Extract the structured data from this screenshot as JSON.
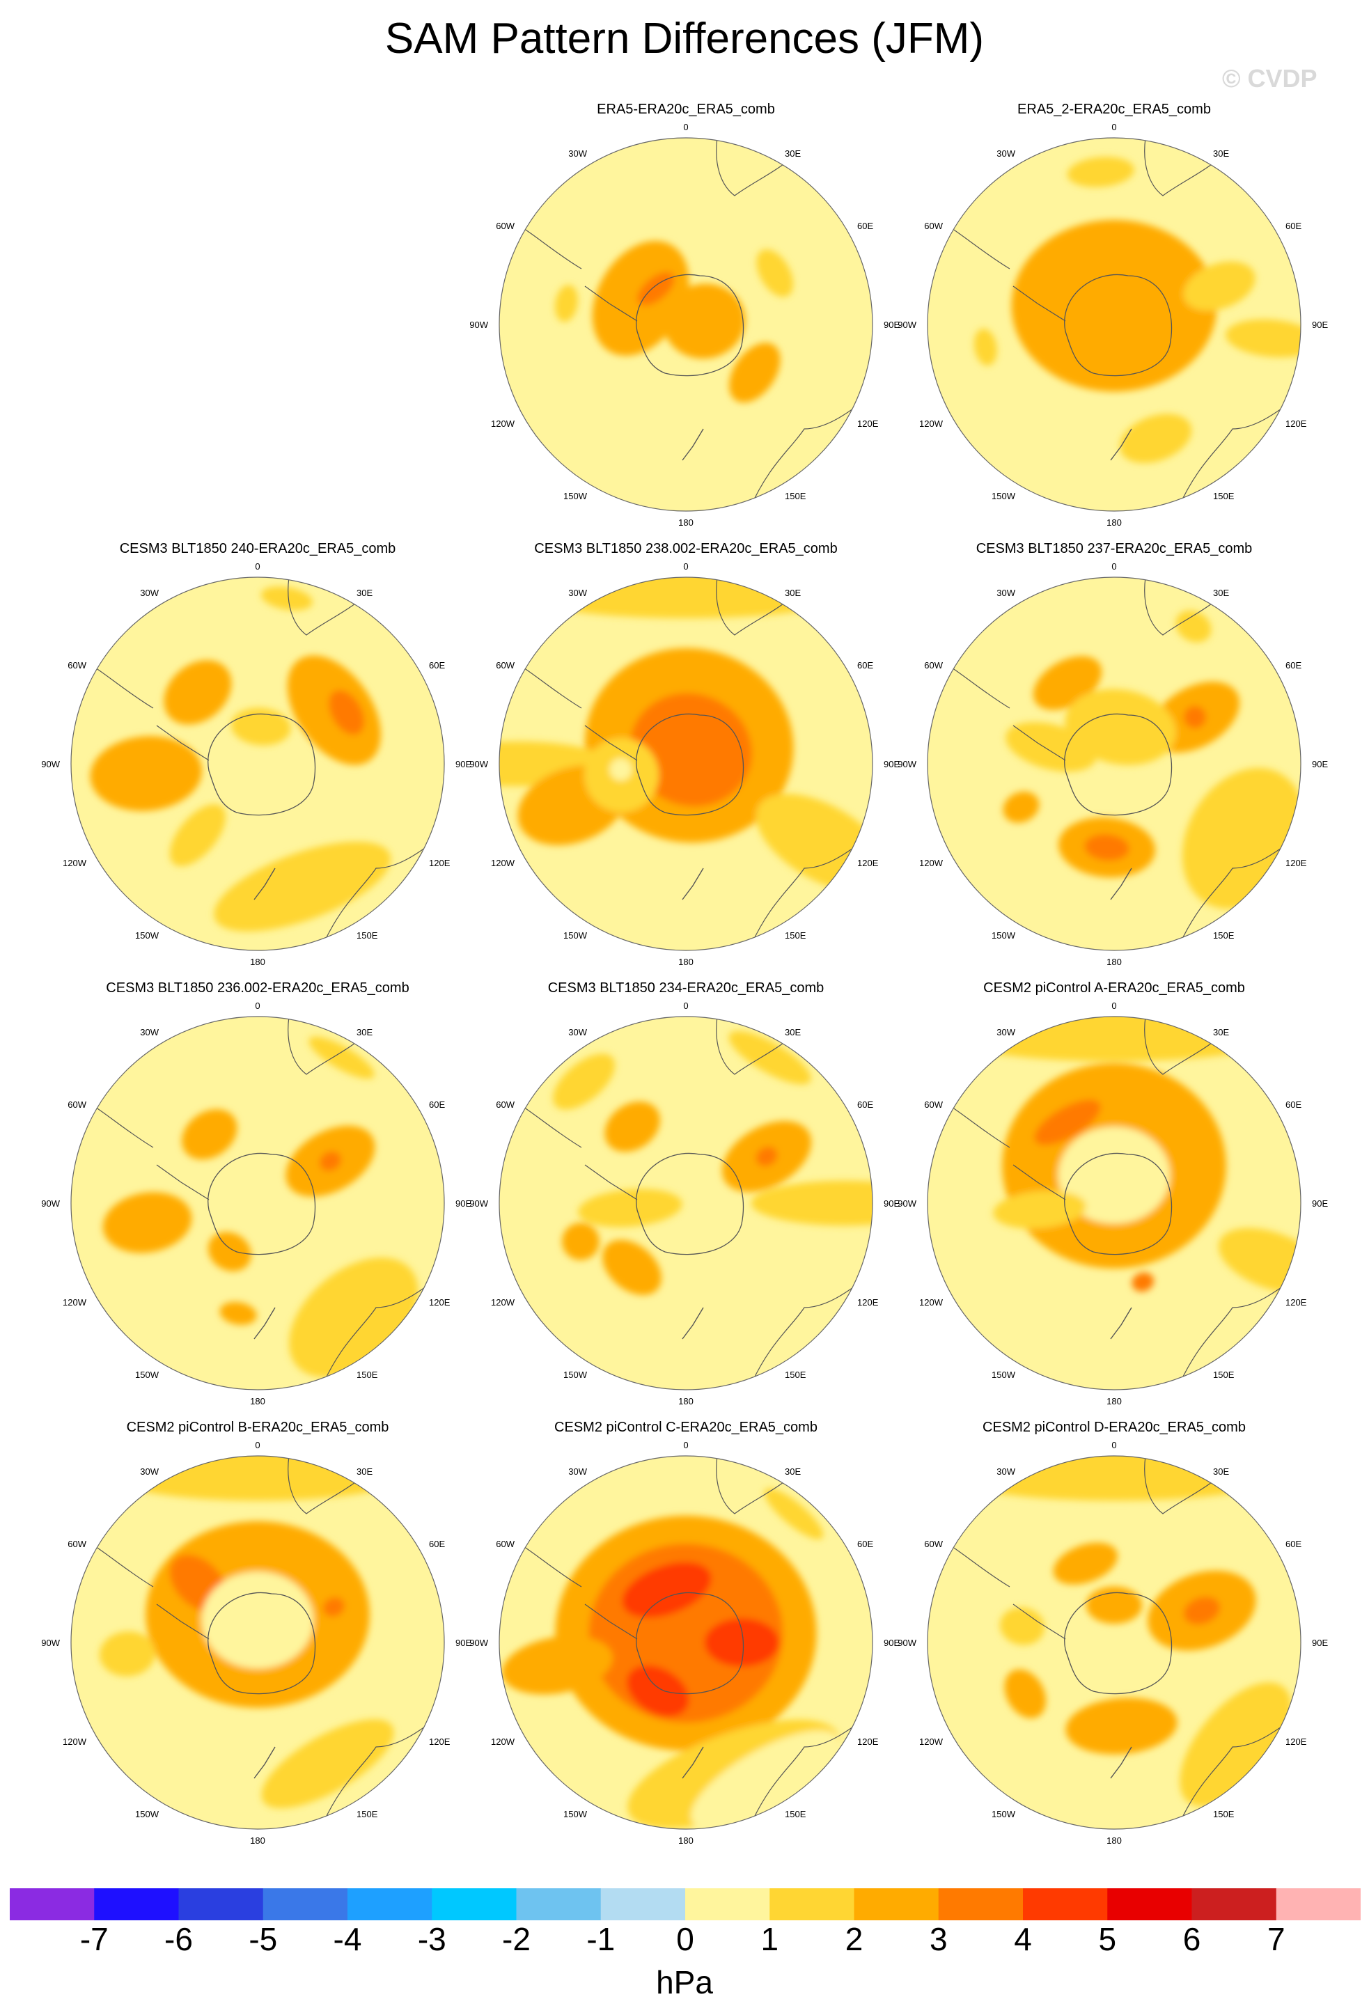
{
  "title": "SAM Pattern Differences (JFM)",
  "watermark": "© CVDP",
  "colorbar": {
    "unit": "hPa",
    "ticks": [
      "-7",
      "-6",
      "-5",
      "-4",
      "-3",
      "-2",
      "-1",
      "0",
      "1",
      "2",
      "3",
      "4",
      "5",
      "6",
      "7"
    ],
    "colors": [
      "#8b2be2",
      "#1e10ff",
      "#2a3fe0",
      "#3a78e8",
      "#1ea0ff",
      "#00c8ff",
      "#6ec3f0",
      "#b3dcf2",
      "#fff59d",
      "#ffd633",
      "#ffab00",
      "#ff7a00",
      "#ff3a00",
      "#e80000",
      "#cc1f1f",
      "#ffb3b3"
    ]
  },
  "lon_labels": {
    "deg0": "0",
    "deg30e": "30E",
    "deg60e": "60E",
    "deg90e": "90E",
    "deg120e": "120E",
    "deg150e": "150E",
    "deg180": "180",
    "deg150w": "150W",
    "deg120w": "120W",
    "deg90w": "90W",
    "deg60w": "60W",
    "deg30w": "30W"
  },
  "panels": [
    {
      "title": "ERA5-ERA20c_ERA5_comb",
      "blobs": [
        {
          "c": 3,
          "a": -60,
          "r": 0.28,
          "w": 0.33,
          "h": 0.23
        },
        {
          "c": 3,
          "a": 125,
          "r": 0.45,
          "w": 0.18,
          "h": 0.11
        },
        {
          "c": 3,
          "a": 80,
          "r": 0.1,
          "w": 0.2,
          "h": 0.22
        },
        {
          "c": 2,
          "a": 60,
          "r": 0.55,
          "w": 0.14,
          "h": 0.08
        },
        {
          "c": 2,
          "a": -80,
          "r": 0.65,
          "w": 0.1,
          "h": 0.06
        },
        {
          "c": 4,
          "a": -40,
          "r": 0.25,
          "w": 0.12,
          "h": 0.06
        }
      ]
    },
    {
      "title": "ERA5_2-ERA20c_ERA5_comb",
      "blobs": [
        {
          "c": 3,
          "a": 0,
          "r": 0.1,
          "w": 0.55,
          "h": 0.46
        },
        {
          "c": 2,
          "a": -5,
          "r": 0.82,
          "w": 0.18,
          "h": 0.08
        },
        {
          "c": 2,
          "a": 160,
          "r": 0.65,
          "w": 0.2,
          "h": 0.12
        },
        {
          "c": 2,
          "a": 70,
          "r": 0.6,
          "w": 0.12,
          "h": 0.2
        },
        {
          "c": 2,
          "a": -100,
          "r": 0.7,
          "w": 0.1,
          "h": 0.06
        },
        {
          "c": 2,
          "a": 95,
          "r": 0.85,
          "w": 0.1,
          "h": 0.25
        }
      ]
    },
    {
      "title": "CESM3 BLT1850 240-ERA20c_ERA5_comb",
      "blobs": [
        {
          "c": 3,
          "a": 55,
          "r": 0.5,
          "w": 0.33,
          "h": 0.2
        },
        {
          "c": 4,
          "a": 60,
          "r": 0.55,
          "w": 0.13,
          "h": 0.08
        },
        {
          "c": 3,
          "a": -40,
          "r": 0.5,
          "w": 0.2,
          "h": 0.15
        },
        {
          "c": 3,
          "a": -95,
          "r": 0.6,
          "w": 0.2,
          "h": 0.3
        },
        {
          "c": 2,
          "a": 160,
          "r": 0.7,
          "w": 0.5,
          "h": 0.18
        },
        {
          "c": 2,
          "a": 5,
          "r": 0.2,
          "w": 0.16,
          "h": 0.1
        },
        {
          "c": 2,
          "a": -140,
          "r": 0.5,
          "w": 0.1,
          "h": 0.2
        },
        {
          "c": 2,
          "a": 10,
          "r": 0.9,
          "w": 0.14,
          "h": 0.06
        }
      ]
    },
    {
      "title": "CESM3 BLT1850 238.002-ERA20c_ERA5_comb",
      "blobs": [
        {
          "c": 3,
          "a": 10,
          "r": 0.1,
          "w": 0.56,
          "h": 0.52
        },
        {
          "c": 4,
          "a": 20,
          "r": 0.08,
          "w": 0.33,
          "h": 0.3
        },
        {
          "c": 2,
          "a": 0,
          "r": 0.92,
          "w": 0.9,
          "h": 0.14
        },
        {
          "c": 2,
          "a": 120,
          "r": 0.85,
          "w": 0.2,
          "h": 0.4
        },
        {
          "c": 2,
          "a": -90,
          "r": 0.9,
          "w": 0.12,
          "h": 0.5
        },
        {
          "c": 3,
          "a": -110,
          "r": 0.65,
          "w": 0.2,
          "h": 0.3
        },
        {
          "c": 2,
          "a": -100,
          "r": 0.35,
          "w": 0.2,
          "h": 0.2
        },
        {
          "c": 1,
          "a": -95,
          "r": 0.35,
          "w": 0.06,
          "h": 0.06
        }
      ]
    },
    {
      "title": "CESM3 BLT1850 237-ERA20c_ERA5_comb",
      "blobs": [
        {
          "c": 3,
          "a": 60,
          "r": 0.5,
          "w": 0.16,
          "h": 0.26
        },
        {
          "c": 4,
          "a": 60,
          "r": 0.5,
          "w": 0.06,
          "h": 0.06
        },
        {
          "c": 3,
          "a": -175,
          "r": 0.45,
          "w": 0.26,
          "h": 0.16
        },
        {
          "c": 4,
          "a": -175,
          "r": 0.45,
          "w": 0.12,
          "h": 0.07
        },
        {
          "c": 3,
          "a": -30,
          "r": 0.5,
          "w": 0.2,
          "h": 0.12
        },
        {
          "c": 3,
          "a": -115,
          "r": 0.55,
          "w": 0.08,
          "h": 0.1
        },
        {
          "c": 2,
          "a": 10,
          "r": 0.2,
          "w": 0.3,
          "h": 0.2
        },
        {
          "c": 2,
          "a": -75,
          "r": 0.35,
          "w": 0.12,
          "h": 0.25
        },
        {
          "c": 2,
          "a": 120,
          "r": 0.8,
          "w": 0.4,
          "h": 0.3
        },
        {
          "c": 2,
          "a": 30,
          "r": 0.85,
          "w": 0.1,
          "h": 0.08
        }
      ]
    },
    {
      "title": "CESM3 BLT1850 236.002-ERA20c_ERA5_comb",
      "blobs": [
        {
          "c": 3,
          "a": 60,
          "r": 0.45,
          "w": 0.16,
          "h": 0.26
        },
        {
          "c": 4,
          "a": 60,
          "r": 0.45,
          "w": 0.05,
          "h": 0.06
        },
        {
          "c": 3,
          "a": -35,
          "r": 0.45,
          "w": 0.16,
          "h": 0.12
        },
        {
          "c": 3,
          "a": -100,
          "r": 0.6,
          "w": 0.16,
          "h": 0.24
        },
        {
          "c": 3,
          "a": -150,
          "r": 0.3,
          "w": 0.12,
          "h": 0.1
        },
        {
          "c": 3,
          "a": -170,
          "r": 0.6,
          "w": 0.1,
          "h": 0.06
        },
        {
          "c": 2,
          "a": 140,
          "r": 0.8,
          "w": 0.4,
          "h": 0.25
        },
        {
          "c": 2,
          "a": 30,
          "r": 0.9,
          "w": 0.2,
          "h": 0.06
        }
      ]
    },
    {
      "title": "CESM3 BLT1850 234-ERA20c_ERA5_comb",
      "blobs": [
        {
          "c": 3,
          "a": 60,
          "r": 0.5,
          "w": 0.16,
          "h": 0.26
        },
        {
          "c": 4,
          "a": 60,
          "r": 0.5,
          "w": 0.05,
          "h": 0.06
        },
        {
          "c": 3,
          "a": -35,
          "r": 0.5,
          "w": 0.16,
          "h": 0.12
        },
        {
          "c": 3,
          "a": -140,
          "r": 0.45,
          "w": 0.18,
          "h": 0.12
        },
        {
          "c": 3,
          "a": -110,
          "r": 0.6,
          "w": 0.1,
          "h": 0.1
        },
        {
          "c": 2,
          "a": -95,
          "r": 0.3,
          "w": 0.1,
          "h": 0.28
        },
        {
          "c": 2,
          "a": 90,
          "r": 0.85,
          "w": 0.12,
          "h": 0.5
        },
        {
          "c": 2,
          "a": 30,
          "r": 0.9,
          "w": 0.25,
          "h": 0.08
        },
        {
          "c": 2,
          "a": -40,
          "r": 0.85,
          "w": 0.2,
          "h": 0.1
        }
      ]
    },
    {
      "title": "CESM2 piControl A-ERA20c_ERA5_comb",
      "blobs": [
        {
          "c": 3,
          "a": 0,
          "r": 0.2,
          "w": 0.6,
          "h": 0.55
        },
        {
          "c": 4,
          "a": -30,
          "r": 0.5,
          "w": 0.2,
          "h": 0.08
        },
        {
          "c": 4,
          "a": 160,
          "r": 0.45,
          "w": 0.06,
          "h": 0.05
        },
        {
          "c": 1,
          "a": 0,
          "r": 0.15,
          "w": 0.3,
          "h": 0.26
        },
        {
          "c": 2,
          "a": -95,
          "r": 0.4,
          "w": 0.1,
          "h": 0.25
        },
        {
          "c": 2,
          "a": 0,
          "r": 0.9,
          "w": 0.9,
          "h": 0.14
        },
        {
          "c": 2,
          "a": 110,
          "r": 0.9,
          "w": 0.15,
          "h": 0.3
        }
      ]
    },
    {
      "title": "CESM2 piControl B-ERA20c_ERA5_comb",
      "blobs": [
        {
          "c": 3,
          "a": 0,
          "r": 0.15,
          "w": 0.6,
          "h": 0.5
        },
        {
          "c": 4,
          "a": -45,
          "r": 0.45,
          "w": 0.12,
          "h": 0.18
        },
        {
          "c": 4,
          "a": 65,
          "r": 0.45,
          "w": 0.05,
          "h": 0.06
        },
        {
          "c": 1,
          "a": 0,
          "r": 0.12,
          "w": 0.3,
          "h": 0.26
        },
        {
          "c": 2,
          "a": 0,
          "r": 0.9,
          "w": 0.8,
          "h": 0.14
        },
        {
          "c": 2,
          "a": -95,
          "r": 0.7,
          "w": 0.12,
          "h": 0.15
        },
        {
          "c": 2,
          "a": 150,
          "r": 0.75,
          "w": 0.4,
          "h": 0.15
        }
      ]
    },
    {
      "title": "CESM2 piControl C-ERA20c_ERA5_comb",
      "blobs": [
        {
          "c": 3,
          "a": 0,
          "r": 0.05,
          "w": 0.7,
          "h": 0.63
        },
        {
          "c": 4,
          "a": 0,
          "r": 0.05,
          "w": 0.52,
          "h": 0.48
        },
        {
          "c": 5,
          "a": -20,
          "r": 0.3,
          "w": 0.25,
          "h": 0.13
        },
        {
          "c": 5,
          "a": 90,
          "r": 0.3,
          "w": 0.13,
          "h": 0.2
        },
        {
          "c": 5,
          "a": -150,
          "r": 0.3,
          "w": 0.18,
          "h": 0.12
        },
        {
          "c": 3,
          "a": -100,
          "r": 0.7,
          "w": 0.15,
          "h": 0.3
        },
        {
          "c": 2,
          "a": 160,
          "r": 0.75,
          "w": 0.6,
          "h": 0.22
        },
        {
          "c": 1,
          "a": 150,
          "r": 0.85,
          "w": 0.45,
          "h": 0.16
        },
        {
          "c": 2,
          "a": 40,
          "r": 0.9,
          "w": 0.2,
          "h": 0.06
        }
      ]
    },
    {
      "title": "CESM2 piControl D-ERA20c_ERA5_comb",
      "blobs": [
        {
          "c": 3,
          "a": 70,
          "r": 0.5,
          "w": 0.2,
          "h": 0.3
        },
        {
          "c": 4,
          "a": 70,
          "r": 0.5,
          "w": 0.07,
          "h": 0.1
        },
        {
          "c": 3,
          "a": -20,
          "r": 0.45,
          "w": 0.18,
          "h": 0.1
        },
        {
          "c": 3,
          "a": 175,
          "r": 0.45,
          "w": 0.3,
          "h": 0.15
        },
        {
          "c": 3,
          "a": -120,
          "r": 0.55,
          "w": 0.14,
          "h": 0.1
        },
        {
          "c": 3,
          "a": 0,
          "r": 0.2,
          "w": 0.15,
          "h": 0.1
        },
        {
          "c": 2,
          "a": 0,
          "r": 0.9,
          "w": 0.9,
          "h": 0.14
        },
        {
          "c": 2,
          "a": 130,
          "r": 0.85,
          "w": 0.4,
          "h": 0.2
        },
        {
          "c": 2,
          "a": -80,
          "r": 0.5,
          "w": 0.1,
          "h": 0.12
        }
      ]
    }
  ]
}
